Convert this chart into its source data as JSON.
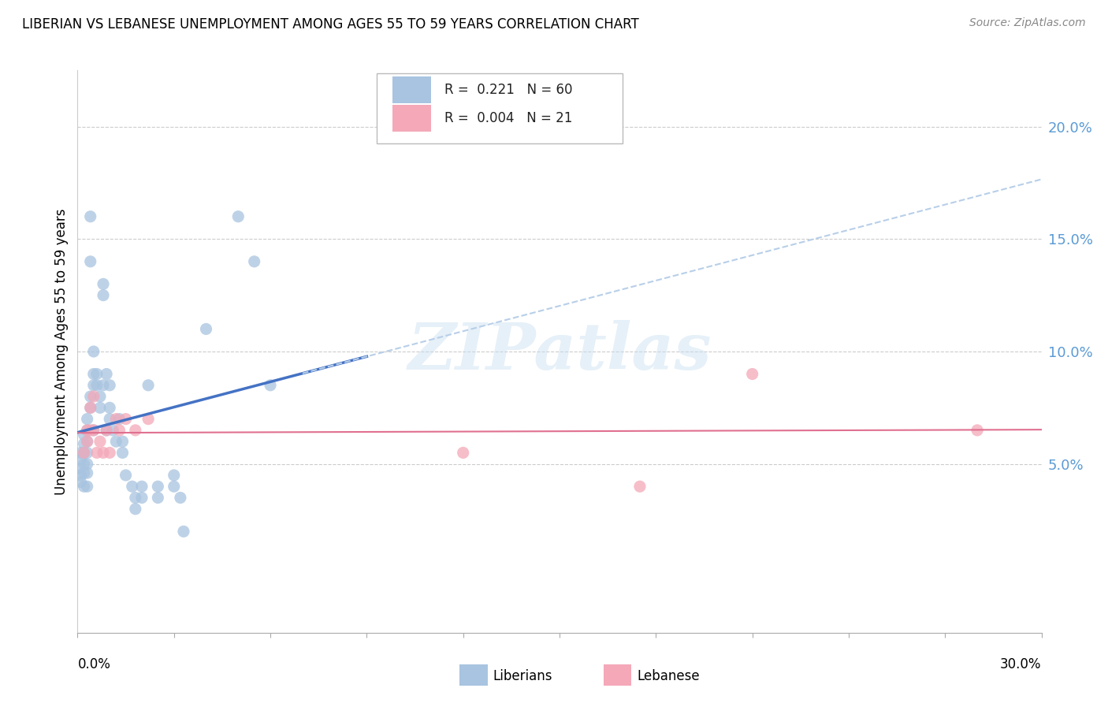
{
  "title": "LIBERIAN VS LEBANESE UNEMPLOYMENT AMONG AGES 55 TO 59 YEARS CORRELATION CHART",
  "source": "Source: ZipAtlas.com",
  "ylabel": "Unemployment Among Ages 55 to 59 years",
  "right_yticks": [
    "5.0%",
    "10.0%",
    "15.0%",
    "20.0%"
  ],
  "right_ytick_vals": [
    0.05,
    0.1,
    0.15,
    0.2
  ],
  "xlim": [
    0.0,
    0.3
  ],
  "ylim": [
    -0.025,
    0.225
  ],
  "watermark": "ZIPatlas",
  "liberian_color": "#a8c4e0",
  "lebanese_color": "#f4a8b8",
  "liberian_line_color": "#4472c4",
  "lebanese_line_color": "#e07090",
  "trend_dash_color": "#b8cfe8",
  "liberian_x": [
    0.001,
    0.001,
    0.001,
    0.001,
    0.001,
    0.002,
    0.002,
    0.002,
    0.002,
    0.002,
    0.002,
    0.003,
    0.003,
    0.003,
    0.003,
    0.003,
    0.003,
    0.003,
    0.004,
    0.004,
    0.004,
    0.004,
    0.005,
    0.005,
    0.005,
    0.005,
    0.006,
    0.006,
    0.007,
    0.007,
    0.008,
    0.008,
    0.008,
    0.009,
    0.009,
    0.01,
    0.01,
    0.01,
    0.011,
    0.012,
    0.013,
    0.014,
    0.014,
    0.015,
    0.017,
    0.018,
    0.018,
    0.02,
    0.02,
    0.022,
    0.025,
    0.025,
    0.03,
    0.03,
    0.032,
    0.033,
    0.04,
    0.05,
    0.055,
    0.06
  ],
  "liberian_y": [
    0.055,
    0.052,
    0.048,
    0.045,
    0.042,
    0.063,
    0.059,
    0.055,
    0.05,
    0.046,
    0.04,
    0.07,
    0.065,
    0.06,
    0.055,
    0.05,
    0.046,
    0.04,
    0.16,
    0.14,
    0.08,
    0.075,
    0.1,
    0.09,
    0.085,
    0.065,
    0.09,
    0.085,
    0.08,
    0.075,
    0.13,
    0.125,
    0.085,
    0.09,
    0.065,
    0.085,
    0.075,
    0.07,
    0.065,
    0.06,
    0.07,
    0.06,
    0.055,
    0.045,
    0.04,
    0.035,
    0.03,
    0.04,
    0.035,
    0.085,
    0.04,
    0.035,
    0.045,
    0.04,
    0.035,
    0.02,
    0.11,
    0.16,
    0.14,
    0.085
  ],
  "lebanese_x": [
    0.002,
    0.003,
    0.003,
    0.004,
    0.004,
    0.005,
    0.005,
    0.006,
    0.007,
    0.008,
    0.009,
    0.01,
    0.012,
    0.013,
    0.015,
    0.018,
    0.022,
    0.12,
    0.175,
    0.21,
    0.28
  ],
  "lebanese_y": [
    0.055,
    0.065,
    0.06,
    0.075,
    0.065,
    0.08,
    0.065,
    0.055,
    0.06,
    0.055,
    0.065,
    0.055,
    0.07,
    0.065,
    0.07,
    0.065,
    0.07,
    0.055,
    0.04,
    0.09,
    0.065
  ],
  "liberian_trend_x0": 0.0,
  "liberian_trend_x1": 0.3,
  "lebanese_trend_x0": 0.0,
  "lebanese_trend_x1": 0.3
}
